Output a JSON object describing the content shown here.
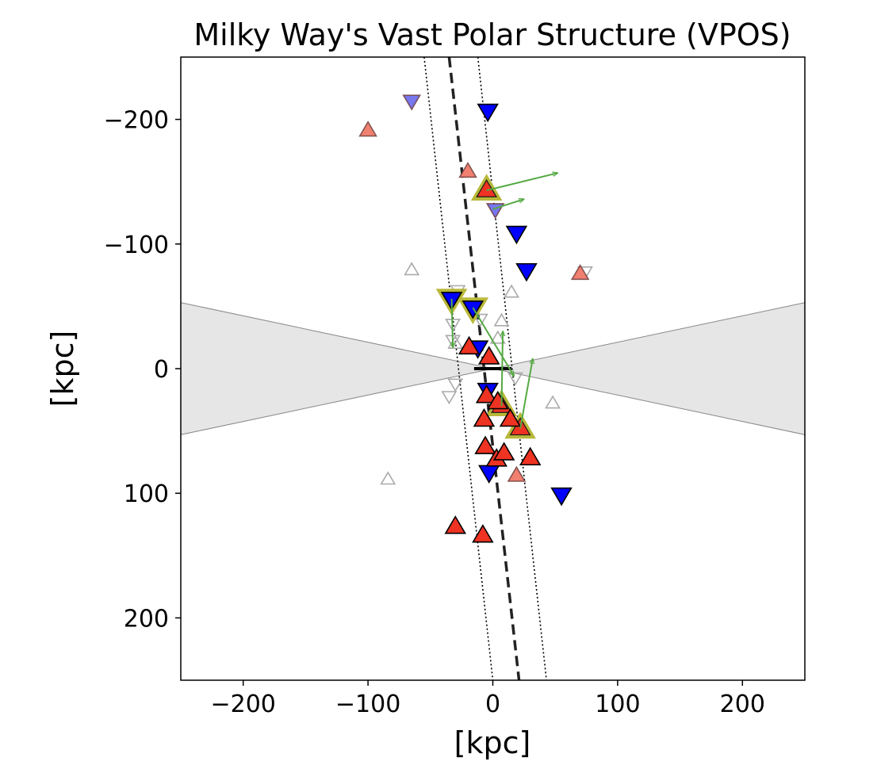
{
  "chart_data": {
    "type": "scatter",
    "title": "Milky Way's Vast Polar Structure (VPOS)",
    "xlabel": "[kpc]",
    "ylabel": "[kpc]",
    "xlim": [
      -250,
      250
    ],
    "ylim": [
      -250,
      250
    ],
    "y_inverted": true,
    "grid": false,
    "xticks": [
      -200,
      -100,
      0,
      100,
      200
    ],
    "yticks": [
      -200,
      -100,
      0,
      100,
      200
    ],
    "xtick_labels": [
      "−200",
      "−100",
      "0",
      "100",
      "200"
    ],
    "ytick_labels": [
      "−200",
      "−100",
      "0",
      "100",
      "200"
    ],
    "colors": {
      "approaching": "#0000ff",
      "receding": "#ee3322",
      "faint_approaching": "#7777ee",
      "faint_receding": "#f08070",
      "other": "#aaaaaa",
      "proper_motion_arrow": "#55aa44",
      "highlight_edge": "#b8b83a",
      "zone_of_avoidance": "#e6e6e6"
    },
    "zone_of_avoidance": {
      "x_edge": 250,
      "y_top_at_edge": -53,
      "y_bottom_at_edge": 53
    },
    "plane_fit": {
      "center_line": [
        [
          -35,
          -250
        ],
        [
          21,
          250
        ]
      ],
      "upper_bound": [
        [
          -55,
          -250
        ],
        [
          0,
          250
        ]
      ],
      "lower_bound": [
        [
          -12,
          -250
        ],
        [
          43,
          250
        ]
      ]
    },
    "mw_disk_segment": [
      [
        -15,
        0
      ],
      [
        15,
        0
      ]
    ],
    "series": [
      {
        "marker": "down",
        "style": "filled",
        "color": "#0000ff",
        "points": [
          [
            -4,
            -207
          ],
          [
            19,
            -109
          ],
          [
            27,
            -79
          ],
          [
            -3,
            83
          ],
          [
            55,
            101
          ],
          [
            -33,
            -56
          ],
          [
            -16,
            -49
          ],
          [
            -12,
            -17
          ],
          [
            -4,
            17
          ]
        ]
      },
      {
        "marker": "up",
        "style": "filled",
        "color": "#ee3322",
        "points": [
          [
            -19,
            -17
          ],
          [
            -3,
            -9
          ],
          [
            -5,
            22
          ],
          [
            -7,
            41
          ],
          [
            4,
            27
          ],
          [
            14,
            41
          ],
          [
            -6,
            63
          ],
          [
            3,
            73
          ],
          [
            9,
            68
          ],
          [
            30,
            72
          ],
          [
            -30,
            127
          ],
          [
            -8,
            134
          ]
        ]
      },
      {
        "marker": "down",
        "style": "faint",
        "color": "#7777ee",
        "points": [
          [
            -65,
            -215
          ],
          [
            2,
            -128
          ]
        ]
      },
      {
        "marker": "up",
        "style": "faint",
        "color": "#f08070",
        "points": [
          [
            -100,
            -191
          ],
          [
            -20,
            -158
          ],
          [
            -5,
            -143
          ],
          [
            70,
            -76
          ],
          [
            19,
            86
          ]
        ]
      },
      {
        "marker": "up",
        "style": "open",
        "color": "#aaaaaa",
        "points": [
          [
            -65,
            -79
          ],
          [
            15,
            -61
          ],
          [
            7,
            -38
          ],
          [
            4,
            -24
          ],
          [
            -30,
            -20
          ],
          [
            48,
            28
          ],
          [
            -84,
            89
          ]
        ]
      },
      {
        "marker": "down",
        "style": "open",
        "color": "#aaaaaa",
        "points": [
          [
            74,
            -78
          ],
          [
            -28,
            -63
          ],
          [
            -32,
            -36
          ],
          [
            -10,
            -40
          ],
          [
            -32,
            -23
          ],
          [
            -30,
            12
          ],
          [
            -35,
            22
          ],
          [
            18,
            7
          ]
        ]
      },
      {
        "marker": "down",
        "style": "highlight",
        "color": "#0000ff",
        "points": [
          [
            -33,
            -56
          ],
          [
            -16,
            -49
          ]
        ]
      },
      {
        "marker": "up",
        "style": "highlight",
        "color": "#ee3322",
        "points": [
          [
            7,
            30
          ],
          [
            22,
            48
          ],
          [
            -5,
            -143
          ]
        ]
      }
    ],
    "proper_motion_arrows": [
      {
        "from": [
          -5,
          -143
        ],
        "to": [
          52,
          -157
        ]
      },
      {
        "from": [
          0,
          -128
        ],
        "to": [
          25,
          -136
        ]
      },
      {
        "from": [
          -33,
          -56
        ],
        "to": [
          -32,
          -17
        ]
      },
      {
        "from": [
          -16,
          -49
        ],
        "to": [
          17,
          6
        ]
      },
      {
        "from": [
          7,
          30
        ],
        "to": [
          8,
          -30
        ]
      },
      {
        "from": [
          22,
          48
        ],
        "to": [
          32,
          -8
        ]
      }
    ]
  }
}
